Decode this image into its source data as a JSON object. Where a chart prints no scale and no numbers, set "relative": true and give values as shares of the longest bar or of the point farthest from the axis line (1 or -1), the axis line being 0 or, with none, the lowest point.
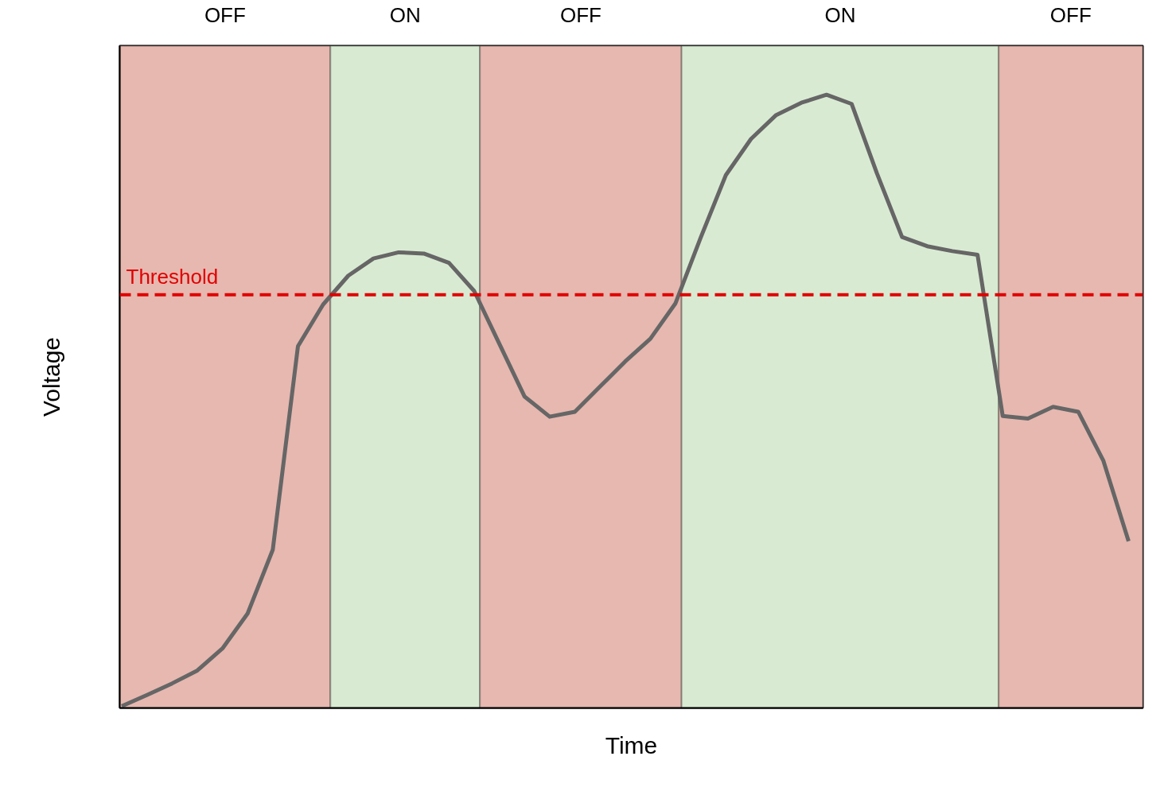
{
  "chart_data": {
    "type": "line",
    "relative": true,
    "xlabel": "Time",
    "ylabel": "Voltage",
    "tick_labels": false,
    "line_style": "solid",
    "marker": "none",
    "categories": [
      null,
      null,
      null,
      null,
      null,
      null,
      null,
      null,
      null,
      null,
      null,
      null,
      null,
      null,
      null,
      null,
      null,
      null,
      null,
      null,
      null,
      null,
      null,
      null,
      null,
      null,
      null,
      null,
      null,
      null,
      null,
      null,
      null,
      null,
      null,
      null,
      null,
      null,
      null,
      null,
      null
    ],
    "series": [
      {
        "color": "#666666",
        "values": [
          0.003,
          0.021,
          0.04,
          0.061,
          0.097,
          0.154,
          0.258,
          0.59,
          0.658,
          0.705,
          0.733,
          0.743,
          0.741,
          0.726,
          0.68,
          0.594,
          0.508,
          0.475,
          0.483,
          0.524,
          0.565,
          0.602,
          0.66,
          0.767,
          0.869,
          0.928,
          0.967,
          0.987,
          1.0,
          0.985,
          0.872,
          0.768,
          0.753,
          0.745,
          0.739,
          0.476,
          0.472,
          0.491,
          0.483,
          0.403,
          0.272
        ]
      }
    ],
    "annotations": [
      "OFF",
      "ON",
      "OFF",
      "ON",
      "OFF"
    ],
    "ref_lines": [
      {
        "axis": "y",
        "value": 0.674,
        "label": "Threshold",
        "color": "#e00000",
        "line_style": "dashed"
      }
    ]
  }
}
